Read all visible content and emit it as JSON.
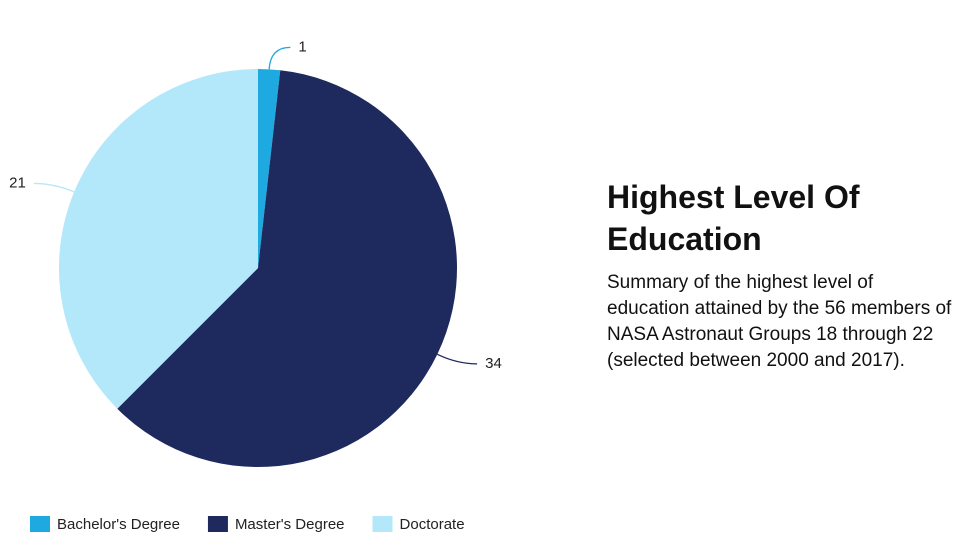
{
  "chart_data": {
    "type": "pie",
    "title": "Highest Level Of Education",
    "subtitle": "Summary of the highest level of education attained by the 56 members of NASA Astronaut Groups 18 through 22 (selected between 2000 and 2017).",
    "categories": [
      "Bachelor's Degree",
      "Master's Degree",
      "Doctorate"
    ],
    "values": [
      1,
      34,
      21
    ],
    "colors": [
      "#1fa9e1",
      "#1e2a5e",
      "#b3e8fb"
    ],
    "legend": "bottom-left"
  }
}
